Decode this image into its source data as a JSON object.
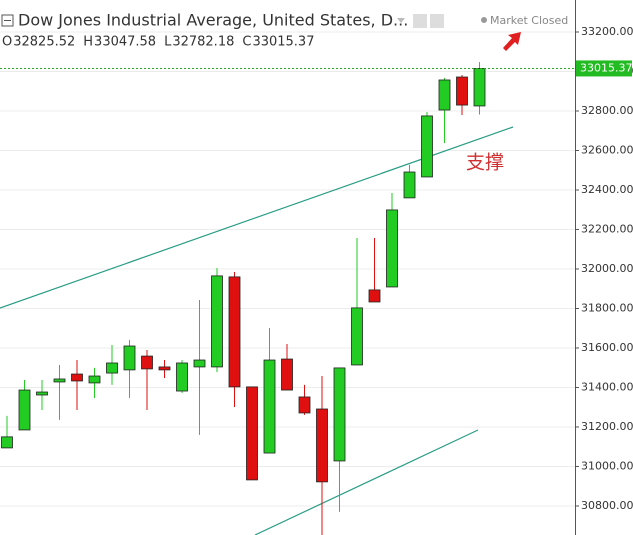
{
  "chart_data": {
    "type": "candlestick",
    "title": "Dow Jones Industrial Average, United States, D...",
    "status": "Market Closed",
    "annotation": "支撑",
    "ohlc_letters": [
      "O",
      "H",
      "L",
      "C"
    ],
    "categories": [
      null,
      null,
      null,
      null,
      null,
      null,
      null,
      null,
      null,
      null,
      null,
      null,
      null,
      null,
      null,
      null,
      null,
      null,
      null,
      null,
      null,
      null,
      null,
      null,
      null,
      null,
      null,
      null
    ],
    "series": [
      {
        "open": [
          31094,
          31185,
          31362,
          31428,
          31468,
          31423,
          31473,
          31489,
          31559,
          31504,
          31382,
          31504,
          31504,
          31960,
          31403,
          31068,
          31544,
          31352,
          31291,
          31028,
          31514,
          31894,
          31909,
          32360,
          32466,
          32805,
          32972,
          32825.52
        ],
        "high": [
          31256,
          31438,
          31438,
          31514,
          31539,
          31499,
          31615,
          31641,
          31590,
          31539,
          31539,
          31843,
          32005,
          31985,
          31403,
          31701,
          31620,
          31413,
          31458,
          31499,
          32157,
          32157,
          32385,
          32527,
          32795,
          32967,
          32982,
          33047.58
        ],
        "low": [
          31094,
          31185,
          31286,
          31236,
          31286,
          31347,
          31413,
          31347,
          31286,
          31448,
          31372,
          31160,
          31478,
          31301,
          30932,
          31068,
          31387,
          31261,
          30653,
          30770,
          31514,
          31833,
          31909,
          32360,
          32466,
          32638,
          32780,
          32782.18
        ],
        "close": [
          31150,
          31387,
          31377,
          31443,
          31433,
          31458,
          31524,
          31610,
          31494,
          31489,
          31524,
          31539,
          31965,
          31403,
          30932,
          31539,
          31387,
          31271,
          30922,
          31499,
          31803,
          31833,
          32299,
          32491,
          32775,
          32957,
          32830,
          33015.37
        ],
        "up_color": "#22cc22",
        "down_color": "#e01010"
      }
    ],
    "ylim": [
      30653,
      33362
    ],
    "yticks": [
      {
        "value": 30800,
        "label": "30800.00"
      },
      {
        "value": 31000,
        "label": "31000.00"
      },
      {
        "value": 31200,
        "label": "31200.00"
      },
      {
        "value": 31400,
        "label": "31400.00"
      },
      {
        "value": 31600,
        "label": "31600.00"
      },
      {
        "value": 31800,
        "label": "31800.00"
      },
      {
        "value": 32000,
        "label": "32000.00"
      },
      {
        "value": 32200,
        "label": "32200.00"
      },
      {
        "value": 32400,
        "label": "32400.00"
      },
      {
        "value": 32600,
        "label": "32600.00"
      },
      {
        "value": 32800,
        "label": "32800.00"
      },
      {
        "value": 33000,
        "label": "33000.00"
      },
      {
        "value": 33200,
        "label": "33200.00"
      }
    ],
    "grid": true
  }
}
